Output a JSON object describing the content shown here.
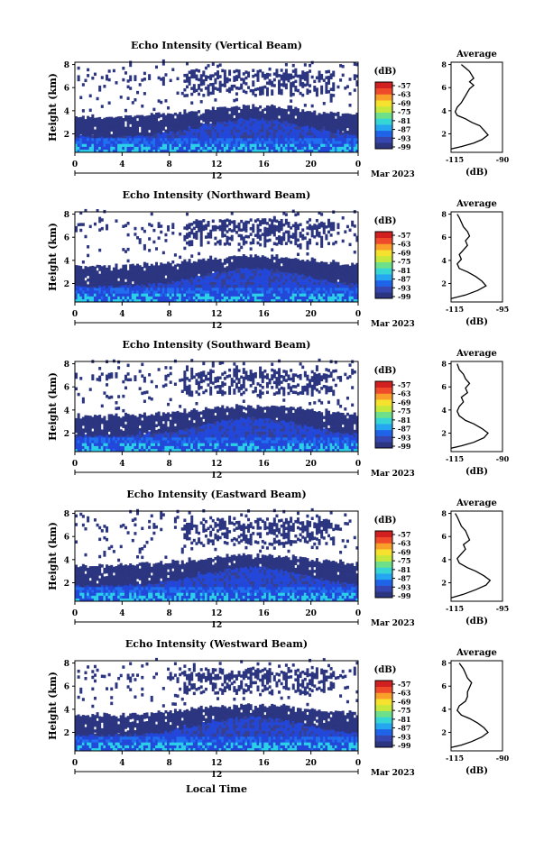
{
  "panels": [
    {
      "title": "Echo Intensity (Vertical Beam)",
      "beam": "vertical",
      "avg_profile": [
        [
          -115,
          0.7
        ],
        [
          -110,
          0.9
        ],
        [
          -104,
          1.2
        ],
        [
          -100,
          1.5
        ],
        [
          -97,
          1.9
        ],
        [
          -99,
          2.3
        ],
        [
          -101,
          2.7
        ],
        [
          -105,
          3.0
        ],
        [
          -108,
          3.3
        ],
        [
          -112,
          3.6
        ],
        [
          -113,
          3.9
        ],
        [
          -112,
          4.3
        ],
        [
          -110,
          4.7
        ],
        [
          -109,
          5.0
        ],
        [
          -108,
          5.3
        ],
        [
          -107,
          5.6
        ],
        [
          -106,
          5.9
        ],
        [
          -104,
          6.2
        ],
        [
          -106,
          6.5
        ],
        [
          -104,
          6.8
        ],
        [
          -105,
          7.1
        ],
        [
          -106,
          7.4
        ],
        [
          -108,
          7.7
        ],
        [
          -110,
          8.0
        ]
      ]
    },
    {
      "title": "Echo Intensity (Northward Beam)",
      "beam": "north",
      "avg_profile": [
        [
          -115,
          0.7
        ],
        [
          -108,
          1.0
        ],
        [
          -102,
          1.4
        ],
        [
          -98,
          1.8
        ],
        [
          -100,
          2.2
        ],
        [
          -103,
          2.6
        ],
        [
          -107,
          3.0
        ],
        [
          -111,
          3.3
        ],
        [
          -112,
          3.7
        ],
        [
          -110,
          4.1
        ],
        [
          -111,
          4.5
        ],
        [
          -109,
          4.9
        ],
        [
          -107,
          5.3
        ],
        [
          -108,
          5.7
        ],
        [
          -106,
          6.1
        ],
        [
          -107,
          6.5
        ],
        [
          -109,
          6.9
        ],
        [
          -110,
          7.3
        ],
        [
          -111,
          7.7
        ],
        [
          -112,
          8.0
        ]
      ]
    },
    {
      "title": "Echo Intensity (Southward Beam)",
      "beam": "south",
      "avg_profile": [
        [
          -115,
          0.7
        ],
        [
          -110,
          0.9
        ],
        [
          -104,
          1.2
        ],
        [
          -99,
          1.6
        ],
        [
          -97,
          2.0
        ],
        [
          -100,
          2.4
        ],
        [
          -104,
          2.8
        ],
        [
          -108,
          3.1
        ],
        [
          -111,
          3.5
        ],
        [
          -112,
          3.9
        ],
        [
          -111,
          4.3
        ],
        [
          -109,
          4.7
        ],
        [
          -110,
          5.1
        ],
        [
          -107,
          5.5
        ],
        [
          -108,
          5.9
        ],
        [
          -106,
          6.3
        ],
        [
          -108,
          6.7
        ],
        [
          -109,
          7.1
        ],
        [
          -111,
          7.5
        ],
        [
          -112,
          8.0
        ]
      ]
    },
    {
      "title": "Echo Intensity (Eastward Beam)",
      "beam": "east",
      "avg_profile": [
        [
          -115,
          0.7
        ],
        [
          -109,
          1.0
        ],
        [
          -103,
          1.4
        ],
        [
          -98,
          1.8
        ],
        [
          -96,
          2.2
        ],
        [
          -99,
          2.6
        ],
        [
          -103,
          3.0
        ],
        [
          -107,
          3.3
        ],
        [
          -111,
          3.7
        ],
        [
          -112,
          4.1
        ],
        [
          -110,
          4.5
        ],
        [
          -108,
          4.9
        ],
        [
          -109,
          5.3
        ],
        [
          -106,
          5.7
        ],
        [
          -107,
          6.1
        ],
        [
          -108,
          6.5
        ],
        [
          -110,
          6.9
        ],
        [
          -111,
          7.3
        ],
        [
          -112,
          7.7
        ],
        [
          -113,
          8.0
        ]
      ]
    },
    {
      "title": "Echo Intensity (Westward Beam)",
      "beam": "west",
      "avg_profile": [
        [
          -115,
          0.7
        ],
        [
          -110,
          0.9
        ],
        [
          -105,
          1.2
        ],
        [
          -100,
          1.6
        ],
        [
          -97,
          2.0
        ],
        [
          -99,
          2.4
        ],
        [
          -102,
          2.8
        ],
        [
          -106,
          3.2
        ],
        [
          -110,
          3.5
        ],
        [
          -112,
          3.9
        ],
        [
          -111,
          4.3
        ],
        [
          -108,
          4.7
        ],
        [
          -107,
          5.1
        ],
        [
          -107,
          5.5
        ],
        [
          -106,
          5.9
        ],
        [
          -105,
          6.3
        ],
        [
          -107,
          6.7
        ],
        [
          -108,
          7.1
        ],
        [
          -109,
          7.5
        ],
        [
          -111,
          8.0
        ]
      ]
    }
  ],
  "ylabel": "Height (km)",
  "y_ticks": [
    "2",
    "4",
    "6",
    "8"
  ],
  "x_ticks": [
    "0",
    "4",
    "8",
    "12",
    "16",
    "20",
    "0"
  ],
  "date_mid_label": "12",
  "month_label": "Mar 2023",
  "xlabel": "Local Time",
  "colorbar_unit": "(dB)",
  "colorbar_ticks": [
    "-57",
    "-63",
    "-69",
    "-75",
    "-81",
    "-87",
    "-93",
    "-99"
  ],
  "avg_title": "Average",
  "avg_xunit": "(dB)",
  "avg_y_ticks": [
    "2",
    "4",
    "6",
    "8"
  ],
  "avg_x_ticks": [
    [
      "-115",
      "-90"
    ],
    [
      "-115",
      "-95"
    ],
    [
      "-115",
      "-90"
    ],
    [
      "-115",
      "-95"
    ],
    [
      "-115",
      "-90"
    ]
  ],
  "colors": {
    "deep_navy": "#2b3580",
    "navy": "#36408f",
    "blue": "#2347d9",
    "mid_blue": "#1f6ff0",
    "cyan": "#2ad0e8",
    "colorbar": [
      "#2b3580",
      "#3546b0",
      "#1f63e8",
      "#24a6f0",
      "#36d6d6",
      "#6fe08a",
      "#c6e83c",
      "#f6e12e",
      "#f8a02a",
      "#ef4b2a",
      "#d22020"
    ]
  },
  "chart_data": {
    "type": "heatmap",
    "x_range": [
      0,
      24
    ],
    "y_range": [
      0.4,
      8.2
    ],
    "z_range": [
      -99,
      -57
    ],
    "color_scale_ticks": [
      -57,
      -63,
      -69,
      -75,
      -81,
      -87,
      -93,
      -99
    ],
    "avg_x_range": [
      -115,
      -90
    ]
  }
}
